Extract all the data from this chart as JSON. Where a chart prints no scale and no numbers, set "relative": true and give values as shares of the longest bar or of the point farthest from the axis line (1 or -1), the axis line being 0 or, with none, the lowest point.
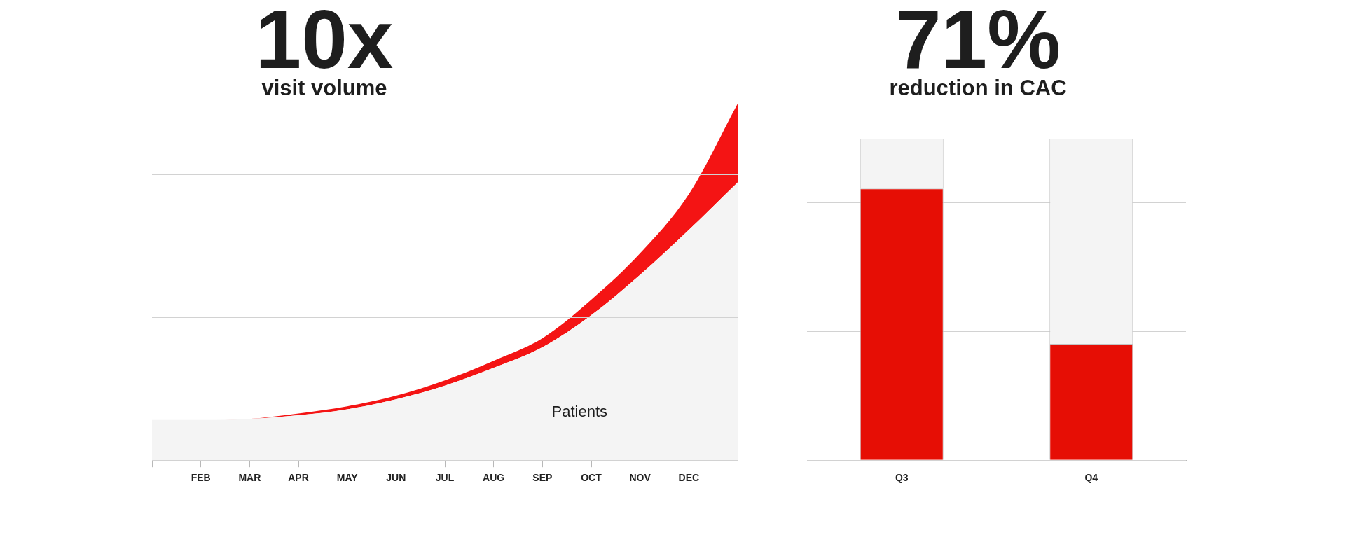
{
  "chart_data": [
    {
      "type": "area",
      "title": "10x",
      "subtitle": "visit volume",
      "relative": true,
      "stacked": true,
      "grid": "y",
      "categories": [
        null,
        "FEB",
        "MAR",
        "APR",
        "MAY",
        "JUN",
        "JUL",
        "AUG",
        "SEP",
        "OCT",
        "NOV",
        "DEC",
        null
      ],
      "series": [
        {
          "name": "Patients",
          "color": "#f4f4f4",
          "values": [
            0.113,
            0.113,
            0.116,
            0.126,
            0.143,
            0.171,
            0.209,
            0.259,
            0.317,
            0.407,
            0.52,
            0.646,
            0.779
          ]
        },
        {
          "color": "#f41414",
          "values": [
            0,
            0,
            0,
            0.005,
            0.008,
            0.01,
            0.015,
            0.02,
            0.025,
            0.043,
            0.06,
            0.1,
            0.221
          ]
        }
      ]
    },
    {
      "type": "bar",
      "title": "71%",
      "subtitle": "reduction in CAC",
      "relative": true,
      "stacked": true,
      "grid": "y",
      "categories": [
        "Q3",
        "Q4"
      ],
      "series": [
        {
          "color": "#e60e05",
          "values": [
            0.845,
            0.362
          ]
        },
        {
          "color": "#f4f4f4",
          "values": [
            0.155,
            0.638
          ]
        }
      ]
    }
  ]
}
